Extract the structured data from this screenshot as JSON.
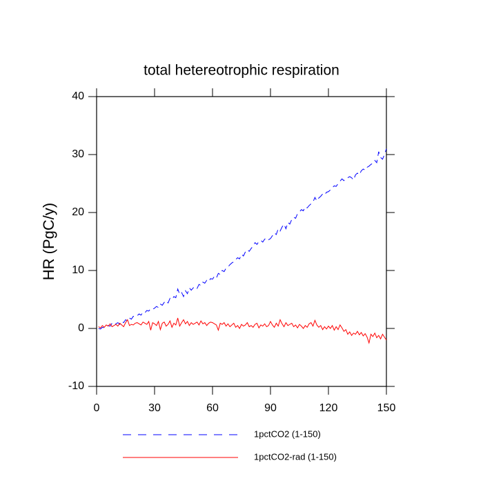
{
  "chart_data": {
    "type": "line",
    "title": "total hetereotrophic respiration",
    "y_label": "HR  (PgC/y)",
    "x": [
      1,
      2,
      3,
      4,
      5,
      6,
      7,
      8,
      9,
      10,
      11,
      12,
      13,
      14,
      15,
      16,
      17,
      18,
      19,
      20,
      21,
      22,
      23,
      24,
      25,
      26,
      27,
      28,
      29,
      30,
      31,
      32,
      33,
      34,
      35,
      36,
      37,
      38,
      39,
      40,
      41,
      42,
      43,
      44,
      45,
      46,
      47,
      48,
      49,
      50,
      51,
      52,
      53,
      54,
      55,
      56,
      57,
      58,
      59,
      60,
      61,
      62,
      63,
      64,
      65,
      66,
      67,
      68,
      69,
      70,
      71,
      72,
      73,
      74,
      75,
      76,
      77,
      78,
      79,
      80,
      81,
      82,
      83,
      84,
      85,
      86,
      87,
      88,
      89,
      90,
      91,
      92,
      93,
      94,
      95,
      96,
      97,
      98,
      99,
      100,
      101,
      102,
      103,
      104,
      105,
      106,
      107,
      108,
      109,
      110,
      111,
      112,
      113,
      114,
      115,
      116,
      117,
      118,
      119,
      120,
      121,
      122,
      123,
      124,
      125,
      126,
      127,
      128,
      129,
      130,
      131,
      132,
      133,
      134,
      135,
      136,
      137,
      138,
      139,
      140,
      141,
      142,
      143,
      144,
      145,
      146,
      147,
      148,
      149,
      150
    ],
    "series": [
      {
        "name": "1pctCO2 (1-150)",
        "color": "#0000ff",
        "dashed": true,
        "values": [
          0.0,
          -0.1,
          0.2,
          0.1,
          0.3,
          0.5,
          0.4,
          0.9,
          0.6,
          0.8,
          1.0,
          0.7,
          1.2,
          1.0,
          1.5,
          1.3,
          1.8,
          1.6,
          2.1,
          2.0,
          2.2,
          2.5,
          2.3,
          2.8,
          2.7,
          3.1,
          3.0,
          3.4,
          3.3,
          3.5,
          3.8,
          3.6,
          4.2,
          4.0,
          4.5,
          4.8,
          4.4,
          5.2,
          5.0,
          5.5,
          5.3,
          6.8,
          5.9,
          6.2,
          5.5,
          6.5,
          6.0,
          7.0,
          6.6,
          7.0,
          7.2,
          6.9,
          7.6,
          7.4,
          8.0,
          7.8,
          8.3,
          8.1,
          8.6,
          8.5,
          9.0,
          8.7,
          9.5,
          9.3,
          10.0,
          9.8,
          10.4,
          10.6,
          11.0,
          11.3,
          11.5,
          11.9,
          12.2,
          12.0,
          12.8,
          12.5,
          13.2,
          13.6,
          13.3,
          13.8,
          14.2,
          14.8,
          14.5,
          15.0,
          15.2,
          14.9,
          15.4,
          15.6,
          15.3,
          15.5,
          16.0,
          16.5,
          16.2,
          17.2,
          16.8,
          17.5,
          18.0,
          17.2,
          18.3,
          18.0,
          18.8,
          19.2,
          19.0,
          19.8,
          20.1,
          20.5,
          20.3,
          21.0,
          20.8,
          21.2,
          21.5,
          21.8,
          22.6,
          22.0,
          22.5,
          22.8,
          23.2,
          23.0,
          23.5,
          23.6,
          23.9,
          24.3,
          24.6,
          24.5,
          25.0,
          25.4,
          25.8,
          25.5,
          25.9,
          26.0,
          26.2,
          26.0,
          25.6,
          26.5,
          26.8,
          26.5,
          27.2,
          27.5,
          27.3,
          27.8,
          28.0,
          28.3,
          28.5,
          29.0,
          28.6,
          30.5,
          29.5,
          29.2,
          30.0,
          31.0
        ]
      },
      {
        "name": "1pctCO2-rad (1-150)",
        "color": "#ff0000",
        "dashed": false,
        "values": [
          0.3,
          0.1,
          0.5,
          0.2,
          0.6,
          0.4,
          0.8,
          0.3,
          0.5,
          0.7,
          0.4,
          0.9,
          0.6,
          0.3,
          1.0,
          1.5,
          0.5,
          0.7,
          0.6,
          0.9,
          1.0,
          0.8,
          0.6,
          1.1,
          0.9,
          0.7,
          1.2,
          -0.3,
          1.0,
          0.8,
          0.5,
          1.2,
          -0.2,
          0.9,
          1.1,
          0.4,
          0.7,
          1.3,
          0.2,
          0.9,
          0.6,
          1.8,
          0.4,
          1.0,
          1.5,
          0.8,
          1.2,
          0.5,
          1.0,
          0.7,
          0.9,
          1.1,
          0.6,
          1.3,
          0.8,
          1.0,
          0.5,
          0.9,
          1.1,
          1.0,
          0.8,
          0.6,
          -0.3,
          0.9,
          0.7,
          1.0,
          0.4,
          0.8,
          0.3,
          0.6,
          0.9,
          0.2,
          0.5,
          0.0,
          0.7,
          0.4,
          0.6,
          1.0,
          0.3,
          0.5,
          0.2,
          0.7,
          0.9,
          0.1,
          0.6,
          0.4,
          0.8,
          0.3,
          0.5,
          1.2,
          0.6,
          0.2,
          0.9,
          0.4,
          1.5,
          0.8,
          0.3,
          1.0,
          0.5,
          0.7,
          0.9,
          0.3,
          0.6,
          0.1,
          0.7,
          0.4,
          0.0,
          0.5,
          0.2,
          0.8,
          1.0,
          0.4,
          1.4,
          0.6,
          0.2,
          0.5,
          -0.2,
          0.3,
          -0.1,
          0.4,
          0.0,
          0.5,
          -0.3,
          0.3,
          -0.2,
          0.6,
          0.1,
          -0.5,
          -0.2,
          -1.0,
          -0.6,
          -1.2,
          -0.8,
          -1.0,
          -0.5,
          -1.1,
          -0.7,
          -1.3,
          -0.9,
          -1.5,
          -2.5,
          -1.0,
          -1.4,
          -0.8,
          -1.6,
          -1.2,
          -1.8,
          -1.0,
          -1.5,
          -2.0
        ]
      }
    ],
    "xlim": [
      0,
      150
    ],
    "xticks": [
      0,
      30,
      60,
      90,
      120,
      150
    ],
    "ylim": [
      -10,
      40
    ],
    "yticks": [
      -10,
      0,
      10,
      20,
      30,
      40
    ]
  }
}
